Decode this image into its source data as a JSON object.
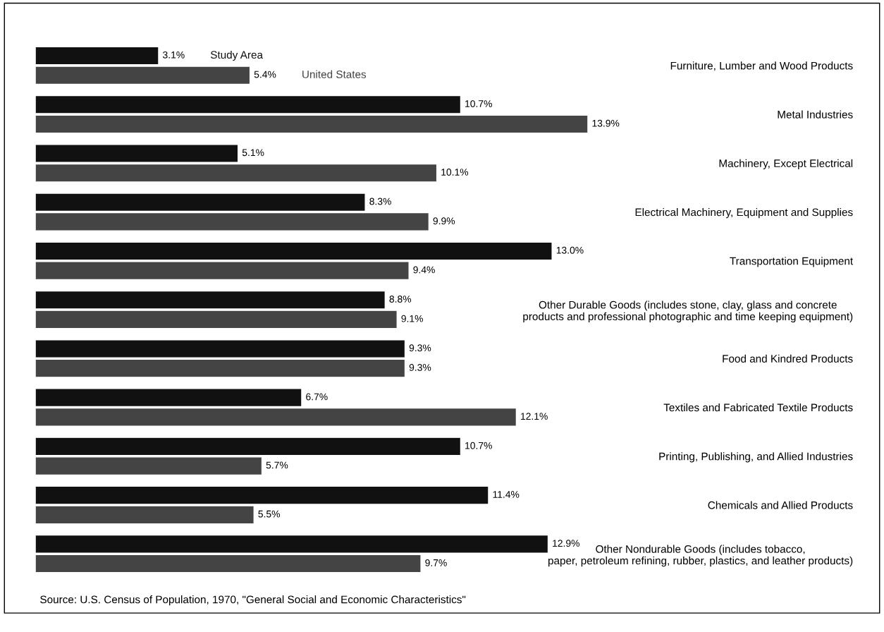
{
  "chart_data": {
    "type": "bar",
    "orientation": "horizontal",
    "tick_labels": "y",
    "categories": [
      "Furniture, Lumber and Wood Products",
      "Metal Industries",
      "Machinery, Except Electrical",
      "Electrical Machinery, Equipment and Supplies",
      "Transportation Equipment",
      "Other Durable Goods (includes stone, clay, glass and concrete\nproducts and professional photographic and time keeping equipment)",
      "Food and Kindred Products",
      "Textiles and Fabricated Textile Products",
      "Printing, Publishing, and Allied Industries",
      "Chemicals and Allied Products",
      "Other Nondurable Goods (includes tobacco,\npaper, petroleum refining, rubber, plastics, and leather products)"
    ],
    "series": [
      {
        "name": "Study Area",
        "color": "#111111",
        "values": [
          3.1,
          10.7,
          5.1,
          8.3,
          13.0,
          8.8,
          9.3,
          6.7,
          10.7,
          11.4,
          12.9
        ],
        "value_labels": [
          "3.1%",
          "10.7%",
          "5.1%",
          "8.3%",
          "13.0%",
          "8.8%",
          "9.3%",
          "6.7%",
          "10.7%",
          "11.4%",
          "12.9%"
        ]
      },
      {
        "name": "United States",
        "color": "#444444",
        "values": [
          5.4,
          13.9,
          10.1,
          9.9,
          9.4,
          9.1,
          9.3,
          12.1,
          5.7,
          5.5,
          9.7
        ],
        "value_labels": [
          "5.4%",
          "13.9%",
          "10.1%",
          "9.9%",
          "9.4%",
          "9.1%",
          "9.3%",
          "12.1%",
          "5.7%",
          "5.5%",
          "9.7%"
        ]
      }
    ],
    "legend": false,
    "grid": false,
    "annotations": [
      "Source: U.S. Census of Population, 1970, \"General Social and Economic Characteristics\""
    ]
  }
}
